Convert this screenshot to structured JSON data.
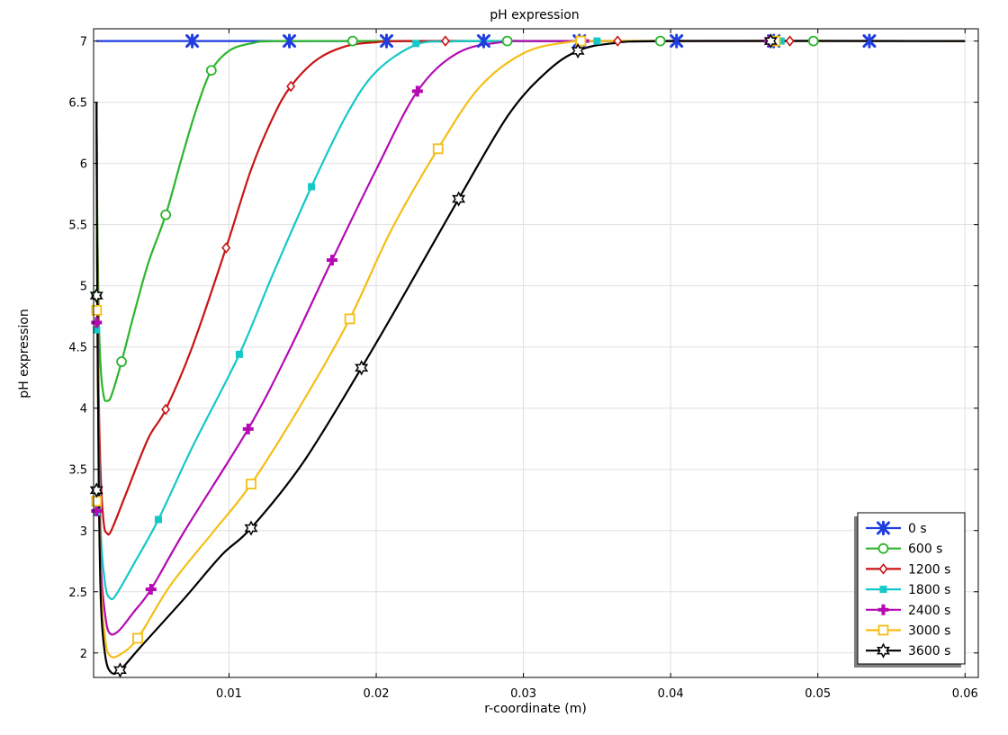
{
  "chart_data": {
    "type": "line",
    "title": "pH expression",
    "xlabel": "r-coordinate (m)",
    "ylabel": "pH expression",
    "xlim": [
      0.0008,
      0.0609
    ],
    "ylim": [
      1.8,
      7.1
    ],
    "x_ticks": [
      0.01,
      0.02,
      0.03,
      0.04,
      0.05,
      0.06
    ],
    "x_tick_labels": [
      "0.01",
      "0.02",
      "0.03",
      "0.04",
      "0.05",
      "0.06"
    ],
    "y_ticks": [
      2,
      2.5,
      3,
      3.5,
      4,
      4.5,
      5,
      5.5,
      6,
      6.5,
      7
    ],
    "y_tick_labels": [
      "2",
      "2.5",
      "3",
      "3.5",
      "4",
      "4.5",
      "5",
      "5.5",
      "6",
      "6.5",
      "7"
    ],
    "grid": true,
    "legend_position": "bottom-right",
    "series": [
      {
        "name": "0 s",
        "color": "#1f3de0",
        "marker": "x-star",
        "points": [
          [
            0.001,
            7.0
          ],
          [
            0.06,
            7.0
          ]
        ],
        "markers": [
          [
            0.0075,
            7.0
          ],
          [
            0.0141,
            7.0
          ],
          [
            0.0207,
            7.0
          ],
          [
            0.0273,
            7.0
          ],
          [
            0.0338,
            7.0
          ],
          [
            0.0404,
            7.0
          ],
          [
            0.047,
            7.0
          ],
          [
            0.0535,
            7.0
          ]
        ]
      },
      {
        "name": "600 s",
        "color": "#2db42d",
        "marker": "circle",
        "points": [
          [
            0.001,
            6.5
          ],
          [
            0.00105,
            5.6
          ],
          [
            0.00115,
            4.75
          ],
          [
            0.0013,
            4.3
          ],
          [
            0.0015,
            4.09
          ],
          [
            0.0017,
            4.06
          ],
          [
            0.002,
            4.1
          ],
          [
            0.0027,
            4.38
          ],
          [
            0.0035,
            4.75
          ],
          [
            0.0045,
            5.18
          ],
          [
            0.0057,
            5.58
          ],
          [
            0.0068,
            6.05
          ],
          [
            0.0078,
            6.45
          ],
          [
            0.0088,
            6.76
          ],
          [
            0.01,
            6.92
          ],
          [
            0.0115,
            6.98
          ],
          [
            0.0135,
            7.0
          ],
          [
            0.06,
            7.0
          ]
        ],
        "markers": [
          [
            0.001,
            4.92
          ],
          [
            0.0027,
            4.38
          ],
          [
            0.0057,
            5.58
          ],
          [
            0.0088,
            6.76
          ],
          [
            0.0184,
            7.0
          ],
          [
            0.0289,
            7.0
          ],
          [
            0.0393,
            7.0
          ],
          [
            0.0497,
            7.0
          ]
        ]
      },
      {
        "name": "1200 s",
        "color": "#c81414",
        "marker": "diamond",
        "points": [
          [
            0.001,
            6.5
          ],
          [
            0.00105,
            5.3
          ],
          [
            0.00115,
            4.1
          ],
          [
            0.0013,
            3.4
          ],
          [
            0.0015,
            3.05
          ],
          [
            0.0017,
            2.98
          ],
          [
            0.002,
            3.0
          ],
          [
            0.003,
            3.3
          ],
          [
            0.0045,
            3.75
          ],
          [
            0.0057,
            3.99
          ],
          [
            0.0075,
            4.5
          ],
          [
            0.0098,
            5.31
          ],
          [
            0.0115,
            5.95
          ],
          [
            0.013,
            6.38
          ],
          [
            0.0142,
            6.63
          ],
          [
            0.016,
            6.85
          ],
          [
            0.018,
            6.96
          ],
          [
            0.02,
            6.99
          ],
          [
            0.022,
            7.0
          ],
          [
            0.06,
            7.0
          ]
        ],
        "markers": [
          [
            0.001,
            3.24
          ],
          [
            0.0057,
            3.99
          ],
          [
            0.0098,
            5.31
          ],
          [
            0.0142,
            6.63
          ],
          [
            0.0247,
            7.0
          ],
          [
            0.0364,
            7.0
          ],
          [
            0.0481,
            7.0
          ]
        ]
      },
      {
        "name": "1800 s",
        "color": "#14c8c8",
        "marker": "square-filled",
        "points": [
          [
            0.001,
            6.5
          ],
          [
            0.00105,
            5.0
          ],
          [
            0.00115,
            3.8
          ],
          [
            0.0013,
            2.95
          ],
          [
            0.0016,
            2.55
          ],
          [
            0.0019,
            2.45
          ],
          [
            0.0023,
            2.47
          ],
          [
            0.0035,
            2.72
          ],
          [
            0.0052,
            3.09
          ],
          [
            0.0075,
            3.68
          ],
          [
            0.0107,
            4.44
          ],
          [
            0.013,
            5.1
          ],
          [
            0.0156,
            5.81
          ],
          [
            0.018,
            6.4
          ],
          [
            0.02,
            6.75
          ],
          [
            0.0227,
            6.97
          ],
          [
            0.025,
            6.995
          ],
          [
            0.027,
            7.0
          ],
          [
            0.06,
            7.0
          ]
        ],
        "markers": [
          [
            0.001,
            4.64
          ],
          [
            0.001,
            3.15
          ],
          [
            0.0052,
            3.09
          ],
          [
            0.0107,
            4.44
          ],
          [
            0.0156,
            5.81
          ],
          [
            0.0227,
            6.98
          ],
          [
            0.035,
            7.0
          ],
          [
            0.0475,
            7.0
          ]
        ]
      },
      {
        "name": "2400 s",
        "color": "#b40ab4",
        "marker": "plus",
        "points": [
          [
            0.001,
            6.5
          ],
          [
            0.00105,
            5.0
          ],
          [
            0.00115,
            3.6
          ],
          [
            0.0013,
            2.7
          ],
          [
            0.0016,
            2.3
          ],
          [
            0.0019,
            2.16
          ],
          [
            0.0025,
            2.18
          ],
          [
            0.0035,
            2.33
          ],
          [
            0.0047,
            2.52
          ],
          [
            0.007,
            3.0
          ],
          [
            0.0113,
            3.83
          ],
          [
            0.014,
            4.45
          ],
          [
            0.017,
            5.21
          ],
          [
            0.02,
            5.95
          ],
          [
            0.0228,
            6.59
          ],
          [
            0.0255,
            6.9
          ],
          [
            0.0285,
            6.99
          ],
          [
            0.032,
            7.0
          ],
          [
            0.06,
            7.0
          ]
        ],
        "markers": [
          [
            0.001,
            4.7
          ],
          [
            0.001,
            3.16
          ],
          [
            0.0047,
            2.52
          ],
          [
            0.0113,
            3.83
          ],
          [
            0.017,
            5.21
          ],
          [
            0.0228,
            6.59
          ],
          [
            0.0341,
            7.0
          ],
          [
            0.0467,
            7.0
          ]
        ]
      },
      {
        "name": "3000 s",
        "color": "#f5be14",
        "marker": "square",
        "points": [
          [
            0.001,
            6.5
          ],
          [
            0.00105,
            5.0
          ],
          [
            0.00115,
            3.5
          ],
          [
            0.0013,
            2.55
          ],
          [
            0.0016,
            2.1
          ],
          [
            0.0019,
            1.98
          ],
          [
            0.0025,
            1.98
          ],
          [
            0.0038,
            2.12
          ],
          [
            0.006,
            2.55
          ],
          [
            0.009,
            3.0
          ],
          [
            0.0115,
            3.38
          ],
          [
            0.015,
            4.05
          ],
          [
            0.0182,
            4.73
          ],
          [
            0.021,
            5.45
          ],
          [
            0.0242,
            6.12
          ],
          [
            0.027,
            6.62
          ],
          [
            0.03,
            6.9
          ],
          [
            0.033,
            6.99
          ],
          [
            0.036,
            7.0
          ],
          [
            0.06,
            7.0
          ]
        ],
        "markers": [
          [
            0.001,
            4.8
          ],
          [
            0.001,
            3.24
          ],
          [
            0.0038,
            2.12
          ],
          [
            0.0115,
            3.38
          ],
          [
            0.0182,
            4.73
          ],
          [
            0.0242,
            6.12
          ],
          [
            0.0339,
            7.0
          ],
          [
            0.0471,
            7.0
          ]
        ]
      },
      {
        "name": "3600 s",
        "color": "#000000",
        "marker": "star",
        "points": [
          [
            0.001,
            6.5
          ],
          [
            0.00105,
            5.0
          ],
          [
            0.00115,
            3.4
          ],
          [
            0.0013,
            2.4
          ],
          [
            0.0016,
            1.97
          ],
          [
            0.002,
            1.84
          ],
          [
            0.0026,
            1.86
          ],
          [
            0.004,
            2.05
          ],
          [
            0.007,
            2.45
          ],
          [
            0.0095,
            2.8
          ],
          [
            0.0115,
            3.02
          ],
          [
            0.015,
            3.55
          ],
          [
            0.019,
            4.33
          ],
          [
            0.022,
            4.95
          ],
          [
            0.0256,
            5.71
          ],
          [
            0.029,
            6.4
          ],
          [
            0.0316,
            6.75
          ],
          [
            0.0337,
            6.92
          ],
          [
            0.036,
            6.98
          ],
          [
            0.04,
            7.0
          ],
          [
            0.06,
            7.0
          ]
        ],
        "markers": [
          [
            0.001,
            4.92
          ],
          [
            0.001,
            3.33
          ],
          [
            0.0026,
            1.86
          ],
          [
            0.0115,
            3.02
          ],
          [
            0.019,
            4.33
          ],
          [
            0.0256,
            5.71
          ],
          [
            0.0337,
            6.92
          ],
          [
            0.0468,
            7.0
          ]
        ]
      }
    ]
  }
}
